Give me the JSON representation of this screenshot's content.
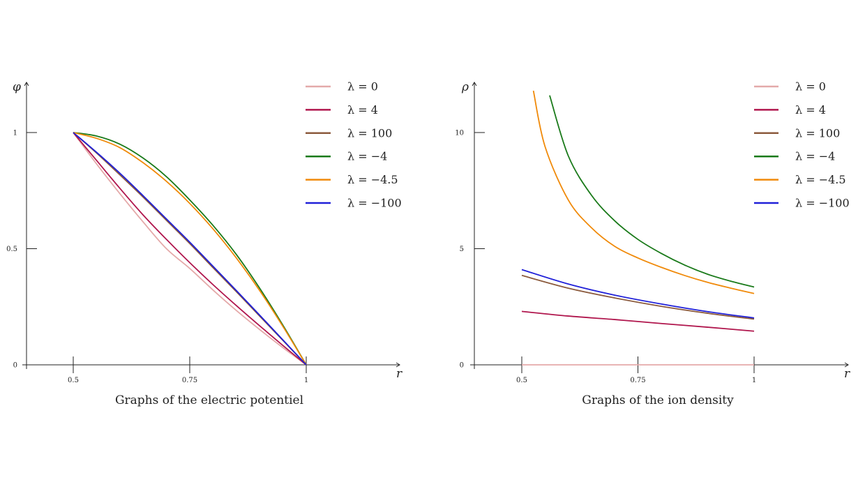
{
  "chart_data": [
    {
      "type": "line",
      "title": "Graphs of the electric potentiel",
      "xlabel": "r",
      "ylabel": "φ",
      "xlim": [
        0.4,
        1.2
      ],
      "ylim": [
        0,
        1.2
      ],
      "xticks": [
        "0.5",
        "0.75",
        "1"
      ],
      "xtick_values": [
        0.5,
        0.75,
        1
      ],
      "yticks": [
        "0",
        "0.5",
        "1"
      ],
      "ytick_values": [
        0,
        0.5,
        1
      ],
      "grid": false,
      "legend_position": "top-right",
      "series": [
        {
          "name": "λ = 0",
          "color": "#e4a9a9",
          "x": [
            0.5,
            0.55,
            0.6,
            0.65,
            0.7,
            0.75,
            0.8,
            0.85,
            0.9,
            0.95,
            1.0
          ],
          "y": [
            1.0,
            0.865,
            0.737,
            0.615,
            0.5,
            0.415,
            0.322,
            0.234,
            0.152,
            0.074,
            0.0
          ]
        },
        {
          "name": "λ = 4",
          "color": "#b0164d",
          "x": [
            0.5,
            0.55,
            0.6,
            0.65,
            0.7,
            0.75,
            0.8,
            0.85,
            0.9,
            0.95,
            1.0
          ],
          "y": [
            1.0,
            0.88,
            0.76,
            0.645,
            0.54,
            0.44,
            0.345,
            0.255,
            0.168,
            0.083,
            0.0
          ]
        },
        {
          "name": "λ = 100",
          "color": "#8b5a3c",
          "x": [
            0.5,
            0.55,
            0.6,
            0.65,
            0.7,
            0.75,
            0.8,
            0.85,
            0.9,
            0.95,
            1.0
          ],
          "y": [
            1.0,
            0.912,
            0.818,
            0.722,
            0.622,
            0.522,
            0.418,
            0.315,
            0.21,
            0.105,
            0.0
          ]
        },
        {
          "name": "λ = −4",
          "color": "#1a7a1a",
          "x": [
            0.5,
            0.55,
            0.6,
            0.65,
            0.7,
            0.75,
            0.8,
            0.85,
            0.9,
            0.95,
            1.0
          ],
          "y": [
            1.0,
            0.985,
            0.95,
            0.89,
            0.81,
            0.71,
            0.6,
            0.475,
            0.33,
            0.17,
            0.0
          ]
        },
        {
          "name": "λ = −4.5",
          "color": "#f08a0a",
          "x": [
            0.5,
            0.55,
            0.6,
            0.65,
            0.7,
            0.75,
            0.8,
            0.85,
            0.9,
            0.95,
            1.0
          ],
          "y": [
            1.0,
            0.975,
            0.935,
            0.87,
            0.79,
            0.695,
            0.585,
            0.46,
            0.32,
            0.165,
            0.0
          ]
        },
        {
          "name": "λ = −100",
          "color": "#2020d8",
          "x": [
            0.5,
            0.55,
            0.6,
            0.65,
            0.7,
            0.75,
            0.8,
            0.85,
            0.9,
            0.95,
            1.0
          ],
          "y": [
            1.0,
            0.915,
            0.825,
            0.728,
            0.628,
            0.528,
            0.424,
            0.32,
            0.214,
            0.107,
            0.0
          ]
        }
      ]
    },
    {
      "type": "line",
      "title": "Graphs of the ion density",
      "xlabel": "r",
      "ylabel": "ρ",
      "xlim": [
        0.4,
        1.2
      ],
      "ylim": [
        0,
        12
      ],
      "xticks": [
        "0.5",
        "0.75",
        "1"
      ],
      "xtick_values": [
        0.5,
        0.75,
        1
      ],
      "yticks": [
        "0",
        "5",
        "10"
      ],
      "ytick_values": [
        0,
        5,
        10
      ],
      "grid": false,
      "legend_position": "top-right",
      "series": [
        {
          "name": "λ = 0",
          "color": "#e4a9a9",
          "x": [
            0.5,
            0.6,
            0.7,
            0.8,
            0.9,
            1.0
          ],
          "y": [
            0,
            0,
            0,
            0,
            0,
            0
          ]
        },
        {
          "name": "λ = 4",
          "color": "#b0164d",
          "x": [
            0.5,
            0.6,
            0.7,
            0.8,
            0.9,
            1.0
          ],
          "y": [
            2.3,
            2.1,
            1.95,
            1.78,
            1.62,
            1.45
          ]
        },
        {
          "name": "λ = 100",
          "color": "#8b5a3c",
          "x": [
            0.5,
            0.6,
            0.7,
            0.8,
            0.9,
            1.0
          ],
          "y": [
            3.85,
            3.3,
            2.88,
            2.52,
            2.22,
            1.97
          ]
        },
        {
          "name": "λ = −4",
          "color": "#1a7a1a",
          "x": [
            0.56,
            0.6,
            0.65,
            0.7,
            0.75,
            0.8,
            0.85,
            0.9,
            0.95,
            1.0
          ],
          "y": [
            11.6,
            9.0,
            7.3,
            6.2,
            5.4,
            4.8,
            4.3,
            3.9,
            3.6,
            3.35
          ]
        },
        {
          "name": "λ = −4.5",
          "color": "#f08a0a",
          "x": [
            0.525,
            0.55,
            0.6,
            0.65,
            0.7,
            0.75,
            0.8,
            0.85,
            0.9,
            0.95,
            1.0
          ],
          "y": [
            11.8,
            9.4,
            7.1,
            5.9,
            5.1,
            4.6,
            4.2,
            3.85,
            3.55,
            3.3,
            3.07
          ]
        },
        {
          "name": "λ = −100",
          "color": "#2020d8",
          "x": [
            0.5,
            0.6,
            0.7,
            0.8,
            0.9,
            1.0
          ],
          "y": [
            4.1,
            3.48,
            3.0,
            2.62,
            2.29,
            2.02
          ]
        }
      ]
    }
  ]
}
